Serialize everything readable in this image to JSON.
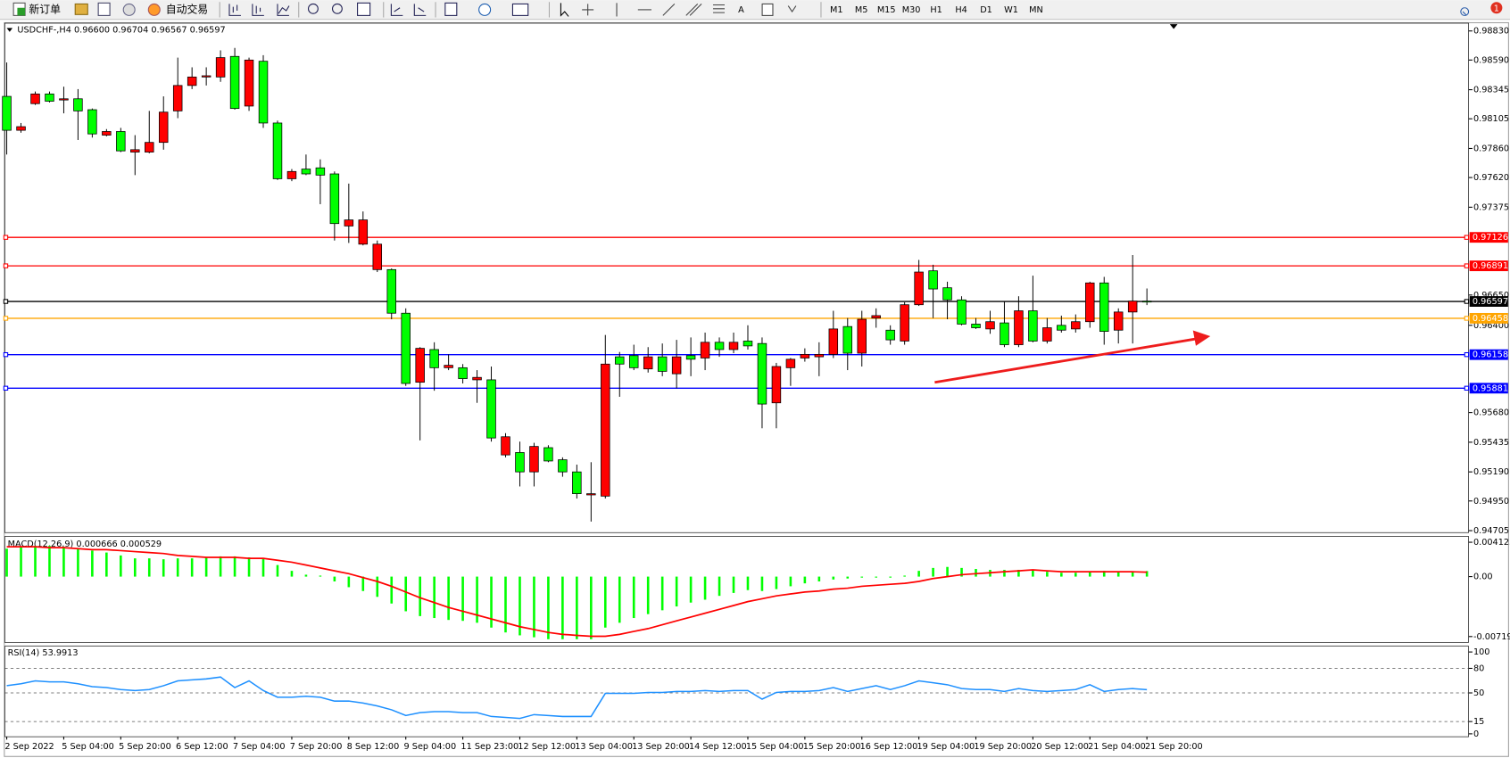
{
  "toolbar": {
    "new_order": "新订单",
    "auto_trading": "自动交易",
    "timeframes": [
      "M1",
      "M5",
      "M15",
      "M30",
      "H1",
      "H4",
      "D1",
      "W1",
      "MN"
    ],
    "badge": "1"
  },
  "chart_data": {
    "type": "candlestick",
    "info": "USDCHF-,H4  0.96600 0.96704 0.96567 0.96597",
    "up_color": "#ff0000",
    "down_color": "#00ff00",
    "categories": [
      "2 Sep 2022",
      null,
      null,
      null,
      "5 Sep 04:00",
      null,
      null,
      null,
      "5 Sep 20:00",
      null,
      null,
      null,
      "6 Sep 12:00",
      null,
      null,
      null,
      "7 Sep 04:00",
      null,
      null,
      null,
      "7 Sep 20:00",
      null,
      null,
      null,
      "8 Sep 12:00",
      null,
      null,
      null,
      "9 Sep 04:00",
      null,
      null,
      null,
      "11 Sep 23:00",
      null,
      null,
      null,
      "12 Sep 12:00",
      null,
      null,
      null,
      "13 Sep 04:00",
      null,
      null,
      null,
      "13 Sep 20:00",
      null,
      null,
      null,
      "14 Sep 12:00",
      null,
      null,
      null,
      "15 Sep 04:00",
      null,
      null,
      null,
      "15 Sep 20:00",
      null,
      null,
      null,
      "16 Sep 12:00",
      null,
      null,
      null,
      "19 Sep 04:00",
      null,
      null,
      null,
      "19 Sep 20:00",
      null,
      null,
      null,
      "20 Sep 12:00",
      null,
      null,
      null,
      "21 Sep 04:00",
      null,
      null,
      null,
      "21 Sep 20:00"
    ],
    "open": [
      0.9829,
      0.9801,
      0.9823,
      0.9831,
      0.9826,
      0.9827,
      0.9818,
      0.9797,
      0.98,
      0.9783,
      0.9783,
      0.9791,
      0.9817,
      0.9838,
      0.9845,
      0.9845,
      0.9862,
      0.9821,
      0.9858,
      0.9807,
      0.9761,
      0.9769,
      0.977,
      0.9765,
      0.9722,
      0.9707,
      0.9686,
      0.9686,
      0.965,
      0.9593,
      0.962,
      0.9605,
      0.9605,
      0.9595,
      0.9595,
      0.9533,
      0.9535,
      0.9519,
      0.9539,
      0.9529,
      0.9519,
      0.95,
      0.9499,
      0.9614,
      0.9615,
      0.9604,
      0.9614,
      0.96,
      0.9615,
      0.9613,
      0.9626,
      0.962,
      0.9627,
      0.9625,
      0.9576,
      0.9605,
      0.9613,
      0.9614,
      0.9616,
      0.9639,
      0.9617,
      0.9646,
      0.9636,
      0.9627,
      0.9657,
      0.9685,
      0.9671,
      0.9661,
      0.9641,
      0.9637,
      0.9642,
      0.9624,
      0.9652,
      0.9627,
      0.964,
      0.9637,
      0.9643,
      0.9675,
      0.9636,
      0.9651,
      0.966
    ],
    "high": [
      0.9857,
      0.9807,
      0.9833,
      0.9833,
      0.9837,
      0.9835,
      0.9819,
      0.9802,
      0.9803,
      0.9797,
      0.9817,
      0.9829,
      0.9861,
      0.9853,
      0.9853,
      0.9867,
      0.9869,
      0.9861,
      0.9863,
      0.9809,
      0.9769,
      0.9781,
      0.9777,
      0.9767,
      0.9757,
      0.9734,
      0.971,
      0.9687,
      0.9654,
      0.9622,
      0.9626,
      0.9616,
      0.9608,
      0.9603,
      0.9606,
      0.9551,
      0.9544,
      0.9543,
      0.9541,
      0.9531,
      0.9525,
      0.9527,
      0.9632,
      0.9618,
      0.9624,
      0.9622,
      0.9625,
      0.9628,
      0.963,
      0.9634,
      0.963,
      0.9634,
      0.964,
      0.963,
      0.9609,
      0.9613,
      0.9621,
      0.9626,
      0.9652,
      0.9646,
      0.9652,
      0.9654,
      0.964,
      0.9659,
      0.9694,
      0.969,
      0.9676,
      0.9664,
      0.9646,
      0.9652,
      0.966,
      0.9664,
      0.9681,
      0.9646,
      0.9648,
      0.9649,
      0.9676,
      0.968,
      0.9654,
      0.9698,
      0.96704
    ],
    "low": [
      0.9781,
      0.9799,
      0.9822,
      0.9824,
      0.9815,
      0.9793,
      0.9795,
      0.9796,
      0.9783,
      0.9764,
      0.9782,
      0.9785,
      0.9811,
      0.9835,
      0.9838,
      0.9841,
      0.9818,
      0.9817,
      0.9803,
      0.976,
      0.9759,
      0.9764,
      0.974,
      0.971,
      0.9708,
      0.9706,
      0.9684,
      0.9645,
      0.959,
      0.9545,
      0.9586,
      0.9603,
      0.9592,
      0.9576,
      0.9544,
      0.9531,
      0.9507,
      0.9507,
      0.9527,
      0.9515,
      0.9497,
      0.9478,
      0.9497,
      0.9581,
      0.9603,
      0.9601,
      0.9598,
      0.9588,
      0.9598,
      0.9603,
      0.9614,
      0.9617,
      0.962,
      0.9555,
      0.9555,
      0.959,
      0.961,
      0.9598,
      0.9613,
      0.9603,
      0.9606,
      0.9638,
      0.9624,
      0.9624,
      0.9656,
      0.9646,
      0.9645,
      0.964,
      0.9637,
      0.9633,
      0.9622,
      0.9622,
      0.9626,
      0.9625,
      0.9634,
      0.9634,
      0.9638,
      0.9624,
      0.9625,
      0.9625,
      0.96567
    ],
    "close": [
      0.9801,
      0.9804,
      0.9831,
      0.9825,
      0.9827,
      0.9817,
      0.9798,
      0.98,
      0.9784,
      0.9785,
      0.9791,
      0.9816,
      0.9838,
      0.9845,
      0.9846,
      0.9861,
      0.9819,
      0.9859,
      0.9807,
      0.9761,
      0.9767,
      0.9765,
      0.9764,
      0.9724,
      0.9727,
      0.9727,
      0.9707,
      0.965,
      0.9592,
      0.9621,
      0.9605,
      0.9607,
      0.9596,
      0.9597,
      0.9547,
      0.9548,
      0.9519,
      0.954,
      0.9528,
      0.9519,
      0.9501,
      0.9501,
      0.9608,
      0.9608,
      0.9605,
      0.9614,
      0.9602,
      0.9614,
      0.9612,
      0.9626,
      0.962,
      0.9626,
      0.9623,
      0.9575,
      0.9606,
      0.9612,
      0.9616,
      0.9616,
      0.9637,
      0.9617,
      0.9645,
      0.9648,
      0.9628,
      0.9657,
      0.9684,
      0.967,
      0.9661,
      0.9641,
      0.9638,
      0.9643,
      0.9624,
      0.9652,
      0.9627,
      0.9638,
      0.9636,
      0.9643,
      0.9675,
      0.9635,
      0.9651,
      0.966,
      0.96597
    ],
    "ylim": [
      0.94689,
      0.98894
    ],
    "yticks": [
      {
        "value": 0.9883,
        "label": "0.98830"
      },
      {
        "value": 0.9859,
        "label": "0.98590"
      },
      0.98345,
      0.98105,
      {
        "value": 0.9786,
        "label": "0.97860"
      },
      {
        "value": 0.9762,
        "label": "0.97620"
      },
      0.97375,
      {
        "value": 0.9665,
        "label": "0.96650"
      },
      {
        "value": 0.964,
        "label": "0.96400"
      },
      {
        "value": 0.9568,
        "label": "0.95680"
      },
      0.95435,
      {
        "value": 0.9519,
        "label": "0.95190"
      },
      {
        "value": 0.9495,
        "label": "0.94950"
      },
      0.94705
    ],
    "levels": [
      {
        "value": 0.97126,
        "color": "#ff0000"
      },
      {
        "value": 0.96891,
        "color": "#ff0000"
      },
      {
        "value": 0.96597,
        "color": "#000000"
      },
      {
        "value": 0.96458,
        "color": "#ffa500"
      },
      {
        "value": 0.96158,
        "color": "#0000ff"
      },
      {
        "value": 0.95881,
        "color": "#0000ff"
      }
    ],
    "macd": {
      "label": "MACD(12,26,9) 0.000666 0.000529",
      "hist_color": "#00ff00",
      "signal_color": "#ff0000",
      "ylim": [
        -0.00789,
        0.00482
      ],
      "yticks": [
        0.004123,
        {
          "value": 0,
          "label": "0.00"
        },
        -0.007193
      ],
      "histogram": [
        0.00335,
        0.00358,
        0.0037,
        0.0037,
        0.00358,
        0.00335,
        0.00312,
        0.00289,
        0.00254,
        0.00219,
        0.00219,
        0.00208,
        0.00219,
        0.00219,
        0.00231,
        0.00243,
        0.00243,
        0.00231,
        0.00219,
        0.00139,
        0.00069,
        0.00023,
        0.00012,
        -0.00058,
        -0.00127,
        -0.00173,
        -0.00243,
        -0.00323,
        -0.00416,
        -0.00474,
        -0.00497,
        -0.0052,
        -0.00531,
        -0.00554,
        -0.00612,
        -0.0067,
        -0.00705,
        -0.00728,
        -0.00751,
        -0.00751,
        -0.00751,
        -0.00751,
        -0.00612,
        -0.00554,
        -0.00497,
        -0.0045,
        -0.00404,
        -0.00358,
        -0.00312,
        -0.00277,
        -0.00231,
        -0.00196,
        -0.00162,
        -0.00173,
        -0.0015,
        -0.00116,
        -0.00081,
        -0.00058,
        -0.00035,
        -0.00023,
        -0.00012,
        -0.00012,
        -0.00012,
        0.00012,
        0.00069,
        0.00104,
        0.00116,
        0.00104,
        0.00092,
        0.00081,
        0.00081,
        0.00081,
        0.00081,
        0.00058,
        0.00046,
        0.00046,
        0.00058,
        0.00069,
        0.00058,
        0.00058,
        0.000666
      ],
      "signal": [
        0.00358,
        0.00358,
        0.00358,
        0.00347,
        0.00347,
        0.00335,
        0.00323,
        0.00323,
        0.00312,
        0.003,
        0.00289,
        0.00277,
        0.00254,
        0.00243,
        0.00231,
        0.00231,
        0.00231,
        0.00219,
        0.00219,
        0.00196,
        0.00173,
        0.00139,
        0.00104,
        0.00069,
        0.00035,
        -0.00012,
        -0.00058,
        -0.00116,
        -0.00185,
        -0.00254,
        -0.00312,
        -0.0037,
        -0.00416,
        -0.00462,
        -0.00508,
        -0.00554,
        -0.00601,
        -0.00635,
        -0.0067,
        -0.00693,
        -0.00705,
        -0.00716,
        -0.00716,
        -0.00693,
        -0.00658,
        -0.00624,
        -0.00578,
        -0.00531,
        -0.00485,
        -0.00439,
        -0.00393,
        -0.00347,
        -0.003,
        -0.00266,
        -0.00231,
        -0.00208,
        -0.00185,
        -0.00173,
        -0.0015,
        -0.00139,
        -0.00116,
        -0.00104,
        -0.00092,
        -0.00081,
        -0.00058,
        -0.00023,
        0,
        0.00023,
        0.00035,
        0.00046,
        0.00058,
        0.00069,
        0.00081,
        0.00069,
        0.00058,
        0.00058,
        0.00058,
        0.00058,
        0.00058,
        0.00058,
        0.000529
      ]
    },
    "rsi": {
      "label": "RSI(14) 53.9913",
      "color": "#1e90ff",
      "ylim": [
        0,
        100
      ],
      "yticks": [
        100,
        80,
        50,
        15,
        0
      ],
      "levels": [
        80,
        50,
        15
      ],
      "values": [
        58.8,
        61.2,
        64.7,
        63.5,
        63.5,
        61.2,
        57.6,
        56.5,
        54.1,
        52.9,
        54.1,
        58.8,
        64.7,
        65.9,
        67.1,
        69.4,
        56.5,
        64.7,
        52.9,
        44.7,
        44.7,
        45.9,
        44.7,
        40.0,
        40.0,
        37.6,
        34.1,
        29.4,
        22.4,
        25.9,
        27.1,
        27.1,
        25.9,
        25.9,
        21.2,
        20.0,
        18.8,
        23.5,
        22.4,
        21.2,
        21.2,
        21.2,
        49.4,
        49.4,
        49.4,
        50.6,
        50.6,
        51.8,
        51.8,
        52.9,
        51.8,
        52.9,
        52.9,
        42.4,
        50.6,
        51.8,
        51.8,
        52.9,
        56.5,
        51.8,
        55.3,
        58.8,
        54.1,
        58.8,
        64.7,
        62.4,
        60.0,
        55.3,
        54.1,
        54.1,
        51.8,
        55.3,
        52.9,
        51.8,
        52.9,
        54.1,
        60.0,
        51.8,
        54.1,
        55.3,
        53.9913
      ]
    }
  }
}
